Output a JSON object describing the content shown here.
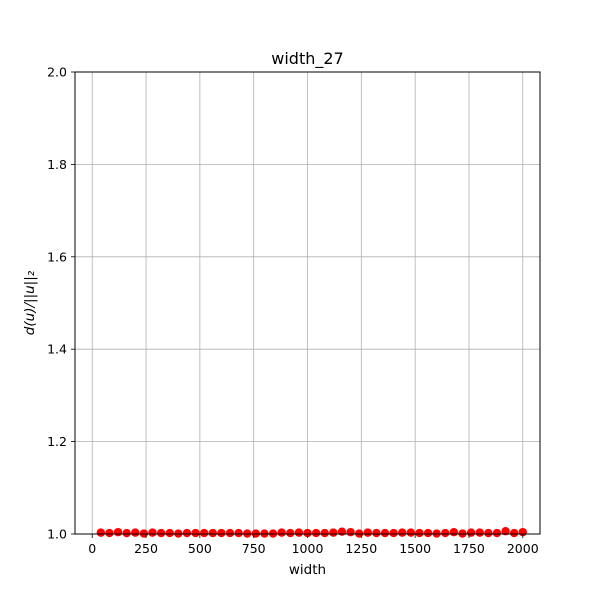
{
  "chart_data": {
    "type": "scatter",
    "title": "width_27",
    "xlabel": "width",
    "ylabel": "d(u)/||u||₂",
    "xlim": [
      -80,
      2080
    ],
    "ylim": [
      1.0,
      2.0
    ],
    "x_ticks": [
      0,
      250,
      500,
      750,
      1000,
      1250,
      1500,
      1750,
      2000
    ],
    "x_tick_labels": [
      "0",
      "250",
      "500",
      "750",
      "1000",
      "1250",
      "1500",
      "1750",
      "2000"
    ],
    "y_ticks": [
      1.0,
      1.2,
      1.4,
      1.6,
      1.8,
      2.0
    ],
    "y_tick_labels": [
      "1.0",
      "1.2",
      "1.4",
      "1.6",
      "1.8",
      "2.0"
    ],
    "grid": true,
    "marker_color": "#ff0000",
    "series": [
      {
        "x": [
          40,
          80,
          120,
          160,
          200,
          240,
          280,
          320,
          360,
          400,
          440,
          480,
          520,
          560,
          600,
          640,
          680,
          720,
          760,
          800,
          840,
          880,
          920,
          960,
          1000,
          1040,
          1080,
          1120,
          1160,
          1200,
          1240,
          1280,
          1320,
          1360,
          1400,
          1440,
          1480,
          1520,
          1560,
          1600,
          1640,
          1680,
          1720,
          1760,
          1800,
          1840,
          1880,
          1920,
          1960,
          2000
        ],
        "y": [
          1.003,
          1.002,
          1.004,
          1.002,
          1.003,
          1.001,
          1.003,
          1.002,
          1.002,
          1.001,
          1.002,
          1.002,
          1.002,
          1.002,
          1.002,
          1.002,
          1.002,
          1.001,
          1.001,
          1.001,
          1.001,
          1.003,
          1.002,
          1.003,
          1.002,
          1.002,
          1.002,
          1.003,
          1.005,
          1.004,
          1.001,
          1.003,
          1.002,
          1.002,
          1.002,
          1.003,
          1.003,
          1.002,
          1.002,
          1.001,
          1.002,
          1.004,
          1.001,
          1.003,
          1.003,
          1.002,
          1.002,
          1.006,
          1.002,
          1.004
        ]
      }
    ]
  }
}
